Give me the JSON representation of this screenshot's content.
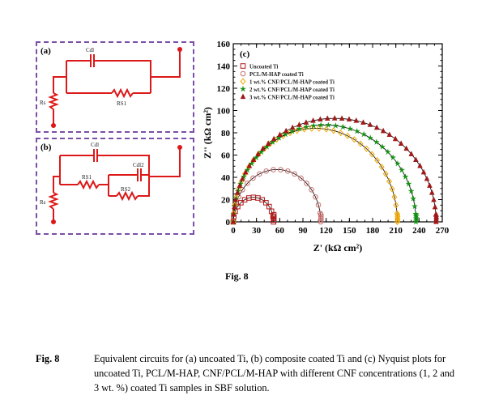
{
  "circuit_a": {
    "letter": "(a)",
    "labels": {
      "cap": "Cdl",
      "res_s": "Rs",
      "res_ct": "RS1"
    }
  },
  "circuit_b": {
    "letter": "(b)",
    "labels": {
      "cap1": "Cdl",
      "cap2": "Cdl2",
      "res_s": "Rs",
      "res1": "RS1",
      "res2": "RS2"
    }
  },
  "chart_data": {
    "type": "scatter",
    "panel_letter": "(c)",
    "xlabel": "Z' (kΩ cm²)",
    "ylabel": "Z'' (kΩ cm²)",
    "xlim": [
      0,
      270
    ],
    "ylim": [
      0,
      160
    ],
    "xticks": [
      0,
      30,
      60,
      90,
      120,
      150,
      180,
      210,
      240,
      270
    ],
    "yticks": [
      0,
      20,
      40,
      60,
      80,
      100,
      120,
      140,
      160
    ],
    "legend_position": "top-left",
    "series": [
      {
        "name": "Uncoated Ti",
        "color": "#b01818",
        "marker": "square",
        "diameter": 52,
        "peak": 22
      },
      {
        "name": "PCL/M-HAP coated Ti",
        "color": "#c87070",
        "marker": "circle",
        "diameter": 113,
        "peak": 47
      },
      {
        "name": "1 wt.% CNF/PCL/M-HAP coated Ti",
        "color": "#f0a800",
        "marker": "diamond",
        "diameter": 212,
        "peak": 84
      },
      {
        "name": "2 wt.% CNF/PCL/M-HAP coated Ti",
        "color": "#109010",
        "marker": "star",
        "diameter": 236,
        "peak": 87
      },
      {
        "name": "3 wt.% CNF/PCL/M-HAP coated Ti",
        "color": "#a01818",
        "marker": "triangle",
        "diameter": 262,
        "peak": 93
      }
    ]
  },
  "figure_label": "Fig. 8",
  "caption": {
    "number": "Fig. 8",
    "text": "Equivalent circuits for (a) uncoated Ti, (b) composite coated Ti and (c) Nyquist plots for uncoated Ti, PCL/M-HAP, CNF/PCL/M-HAP with different CNF concentrations (1, 2 and 3 wt. %) coated Ti samples in SBF solution."
  }
}
